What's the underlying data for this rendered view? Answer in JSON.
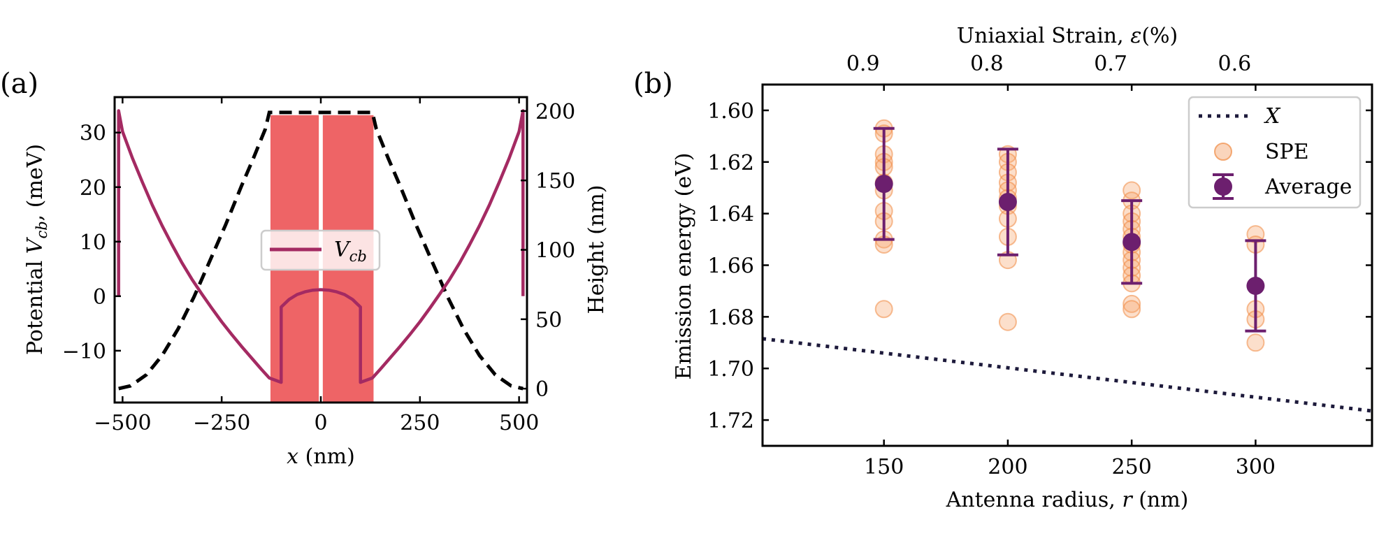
{
  "chart_data": [
    {
      "type": "line",
      "panel_label": "(a)",
      "xlabel_var": "x",
      "xlabel_unit": "(nm)",
      "ylabel_pre": "Potential ",
      "ylabel_var": "V",
      "ylabel_sub": "cb",
      "ylabel_post": ", (meV)",
      "y2label": "Height (nm)",
      "xlim": [
        -520,
        520
      ],
      "ylim": [
        -19.5,
        36.5
      ],
      "y2lim": [
        -10,
        210
      ],
      "xticks": [
        -500,
        -250,
        0,
        250,
        500
      ],
      "xtick_labels": [
        "−500",
        "−250",
        "0",
        "250",
        "500"
      ],
      "yticks": [
        -10,
        0,
        10,
        20,
        30
      ],
      "ytick_labels": [
        "−10",
        "0",
        "10",
        "20",
        "30"
      ],
      "y2ticks": [
        0,
        50,
        100,
        150,
        200
      ],
      "y2tick_labels": [
        "0",
        "50",
        "100",
        "150",
        "200"
      ],
      "legend": {
        "position": "center",
        "var": "V",
        "sub": "cb"
      },
      "pillars": [
        {
          "x0": -127,
          "x1": -5,
          "height": 197
        },
        {
          "x0": 5,
          "x1": 133,
          "height": 197
        }
      ],
      "height_profile": {
        "name": "Height",
        "x": [
          -510,
          -480,
          -440,
          -400,
          -360,
          -320,
          -280,
          -240,
          -200,
          -170,
          -150,
          -140,
          -130,
          130,
          140,
          150,
          170,
          200,
          240,
          280,
          320,
          360,
          400,
          440,
          480,
          510
        ],
        "y": [
          0,
          2,
          10,
          24,
          43,
          66,
          92,
          118,
          146,
          166,
          180,
          187,
          199,
          199,
          187,
          180,
          166,
          146,
          118,
          92,
          66,
          43,
          24,
          10,
          2,
          0
        ]
      },
      "potential": {
        "name": "V_cb",
        "x": [
          -510,
          -510,
          -500,
          -475,
          -450,
          -425,
          -400,
          -375,
          -350,
          -325,
          -300,
          -275,
          -250,
          -225,
          -200,
          -175,
          -150,
          -130,
          -100,
          -100,
          -80,
          -60,
          -40,
          -20,
          0,
          20,
          40,
          60,
          80,
          100,
          100,
          130,
          150,
          175,
          200,
          225,
          250,
          275,
          300,
          325,
          350,
          375,
          400,
          425,
          450,
          475,
          500,
          510,
          510
        ],
        "y": [
          0,
          34,
          30.2,
          25.3,
          20.9,
          16.7,
          12.9,
          9.4,
          6.1,
          3.1,
          0.4,
          -2.2,
          -4.7,
          -7.0,
          -9.2,
          -11.3,
          -13.4,
          -15.0,
          -15.8,
          -2.0,
          -0.6,
          0.3,
          0.8,
          1.1,
          1.2,
          1.1,
          0.8,
          0.3,
          -0.6,
          -2.0,
          -15.8,
          -15.0,
          -13.4,
          -11.3,
          -9.2,
          -7.0,
          -4.7,
          -2.2,
          0.4,
          3.1,
          6.1,
          9.4,
          12.9,
          16.7,
          20.9,
          25.3,
          30.2,
          34,
          0
        ]
      }
    },
    {
      "type": "scatter",
      "panel_label": "(b)",
      "xlabel_pre": "Antenna radius, ",
      "xlabel_var": "r",
      "xlabel_post": " (nm)",
      "ylabel": "Emission energy (eV)",
      "top_xlabel_pre": "Uniaxial Strain, ",
      "top_xlabel_var": "ε",
      "top_xlabel_post": "(%)",
      "xlim": [
        101,
        347
      ],
      "ylim": [
        1.59,
        1.73
      ],
      "ylim_inverted": true,
      "xticks": [
        150,
        200,
        250,
        300
      ],
      "xtick_labels": [
        "150",
        "200",
        "250",
        "300"
      ],
      "yticks": [
        1.6,
        1.62,
        1.64,
        1.66,
        1.68,
        1.7,
        1.72
      ],
      "ytick_labels": [
        "1.60",
        "1.62",
        "1.64",
        "1.66",
        "1.68",
        "1.70",
        "1.72"
      ],
      "top_xtick_positions": [
        150,
        200,
        250,
        300
      ],
      "top_xtick_labels": [
        "0.9",
        "0.8",
        "0.7",
        "0.6"
      ],
      "legend": {
        "position": "top-right",
        "entries": [
          "X",
          "SPE",
          "Average"
        ]
      },
      "exciton_line": {
        "name": "X",
        "x": [
          101,
          347
        ],
        "y": [
          1.6885,
          1.7165
        ]
      },
      "spe": {
        "name": "SPE",
        "groups": [
          {
            "x": 150,
            "y": [
              1.607,
              1.609,
              1.617,
              1.62,
              1.622,
              1.628,
              1.631,
              1.639,
              1.643,
              1.65,
              1.652,
              1.677
            ]
          },
          {
            "x": 200,
            "y": [
              1.617,
              1.62,
              1.624,
              1.628,
              1.631,
              1.634,
              1.637,
              1.642,
              1.649,
              1.658,
              1.682
            ]
          },
          {
            "x": 250,
            "y": [
              1.631,
              1.635,
              1.64,
              1.643,
              1.646,
              1.649,
              1.652,
              1.655,
              1.658,
              1.661,
              1.664,
              1.667,
              1.675,
              1.677
            ]
          },
          {
            "x": 300,
            "y": [
              1.648,
              1.652,
              1.677,
              1.681,
              1.69
            ]
          }
        ]
      },
      "average": {
        "name": "Average",
        "x": [
          150,
          200,
          250,
          300
        ],
        "y": [
          1.6285,
          1.6355,
          1.651,
          1.668
        ],
        "err": [
          0.0215,
          0.0205,
          0.016,
          0.0175
        ]
      }
    }
  ]
}
